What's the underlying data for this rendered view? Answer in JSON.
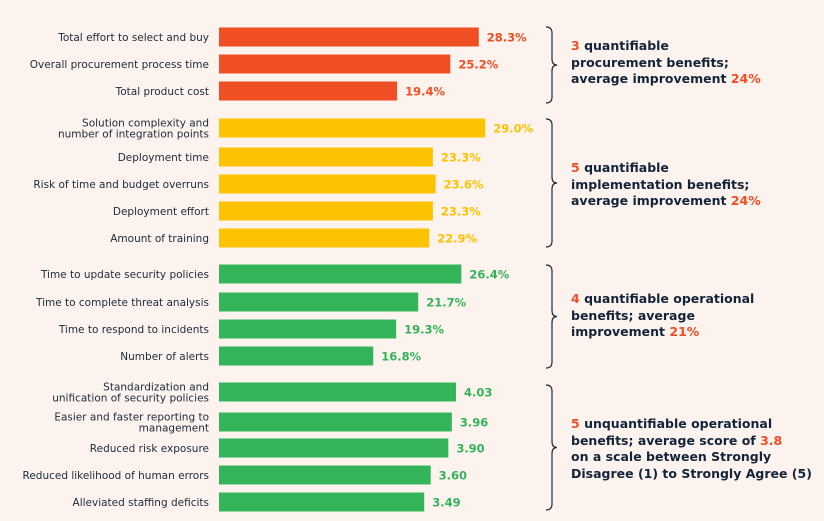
{
  "colors": {
    "procurement": "#f04e23",
    "implementation": "#fdc200",
    "operational": "#33b459",
    "highlight": "#f04e23",
    "text": "#1c2a3a"
  },
  "chart_data": {
    "type": "bar",
    "orientation": "horizontal",
    "title": "",
    "groups": [
      {
        "name": "procurement",
        "unit": "%",
        "categories": [
          "Total effort to select and buy",
          "Overall procurement process time",
          "Total product cost"
        ],
        "values": [
          28.3,
          25.2,
          19.4
        ],
        "labels": [
          "28.3%",
          "25.2%",
          "19.4%"
        ]
      },
      {
        "name": "implementation",
        "unit": "%",
        "categories": [
          "Solution complexity and\nnumber of integration points",
          "Deployment time",
          "Risk of time and budget overruns",
          "Deployment effort",
          "Amount of training"
        ],
        "values": [
          29.0,
          23.3,
          23.6,
          23.3,
          22.9
        ],
        "labels": [
          "29.0%",
          "23.3%",
          "23.6%",
          "23.3%",
          "22.9%"
        ]
      },
      {
        "name": "operational",
        "unit": "%",
        "categories": [
          "Time to update security policies",
          "Time to complete threat analysis",
          "Time to respond to incidents",
          "Number of alerts"
        ],
        "values": [
          26.4,
          21.7,
          19.3,
          16.8
        ],
        "labels": [
          "26.4%",
          "21.7%",
          "19.3%",
          "16.8%"
        ]
      },
      {
        "name": "unquantifiable",
        "unit": "score (1-5)",
        "categories": [
          "Standardization and\nunification of security policies",
          "Easier and faster reporting to\nmanagement",
          "Reduced risk exposure",
          "Reduced likelihood of human errors",
          "Alleviated staffing deficits"
        ],
        "values": [
          4.03,
          3.96,
          3.9,
          3.6,
          3.49
        ],
        "labels": [
          "4.03",
          "3.96",
          "3.90",
          "3.60",
          "3.49"
        ]
      }
    ],
    "xlabel": "",
    "ylabel": "",
    "grid": false,
    "legend": "none"
  },
  "notes": [
    {
      "num": "3",
      "lines": [
        "quantifiable",
        "procurement benefits;",
        "average improvement "
      ],
      "highlight_end": "24%"
    },
    {
      "num": "5",
      "lines": [
        "quantifiable",
        "implementation benefits;",
        "average improvement "
      ],
      "highlight_end": "24%"
    },
    {
      "num": "4",
      "lines": [
        "quantifiable operational",
        "benefits; average",
        "improvement "
      ],
      "highlight_end": "21%"
    },
    {
      "num": "5",
      "lines": [
        "unquantifiable operational",
        "benefits; average score of ",
        "on a scale between Strongly",
        "Disagree (1) to Strongly Agree (5)"
      ],
      "highlight_mid": "3.8"
    }
  ]
}
